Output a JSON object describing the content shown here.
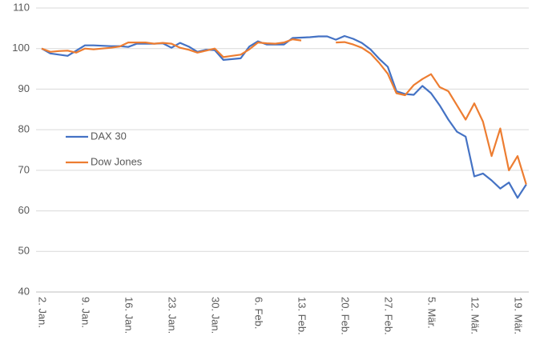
{
  "chart_data": {
    "type": "line",
    "categories": [
      "2. Jan.",
      null,
      null,
      null,
      null,
      "9. Jan.",
      null,
      null,
      null,
      null,
      "16. Jan.",
      null,
      null,
      null,
      null,
      "23. Jan.",
      null,
      null,
      null,
      null,
      "30. Jan.",
      null,
      null,
      null,
      null,
      "6. Feb.",
      null,
      null,
      null,
      null,
      "13. Feb.",
      null,
      null,
      null,
      null,
      "20. Feb.",
      null,
      null,
      null,
      null,
      "27. Feb.",
      null,
      null,
      null,
      null,
      "5. Mär.",
      null,
      null,
      null,
      null,
      "12. Mär.",
      null,
      null,
      null,
      null,
      "19. Mär.",
      null
    ],
    "series": [
      {
        "name": "DAX 30",
        "color": "#4472c4",
        "values": [
          100,
          98.8,
          98.5,
          98.2,
          99.5,
          100.8,
          100.8,
          100.7,
          100.6,
          100.6,
          100.4,
          101.2,
          101.2,
          101.2,
          101.3,
          100.2,
          101.4,
          100.5,
          99.2,
          99.7,
          99.6,
          97.2,
          97.4,
          97.6,
          100.5,
          101.8,
          101,
          101,
          101,
          102.6,
          102.7,
          102.8,
          103,
          103,
          102.2,
          103.1,
          102.4,
          101.4,
          99.8,
          97.5,
          95.5,
          89.5,
          88.8,
          88.6,
          90.8,
          89,
          86,
          82.5,
          79.5,
          78.3,
          68.5,
          69.2,
          67.5,
          65.5,
          67,
          63.2,
          66.5
        ]
      },
      {
        "name": "Dow Jones",
        "color": "#ed7d31",
        "values": [
          100,
          99.2,
          99.4,
          99.5,
          99,
          100,
          99.8,
          100,
          100.2,
          100.5,
          101.5,
          101.5,
          101.5,
          101.2,
          101.4,
          101.2,
          100.2,
          99.7,
          99,
          99.5,
          100,
          97.9,
          98.2,
          98.5,
          99.8,
          101.5,
          101.3,
          101.2,
          101.5,
          102.3,
          102,
          null,
          null,
          null,
          101.5,
          101.6,
          101,
          100.2,
          98.8,
          96.5,
          93.8,
          89,
          88.5,
          91,
          92.5,
          93.7,
          90.5,
          89.5,
          86,
          82.5,
          86.5,
          82,
          73.5,
          80.3,
          70,
          73.5,
          66.5
        ]
      }
    ],
    "ylim": [
      40,
      110
    ],
    "yticks": [
      40,
      50,
      60,
      70,
      80,
      90,
      100,
      110
    ],
    "grid": true,
    "legend": "left"
  }
}
